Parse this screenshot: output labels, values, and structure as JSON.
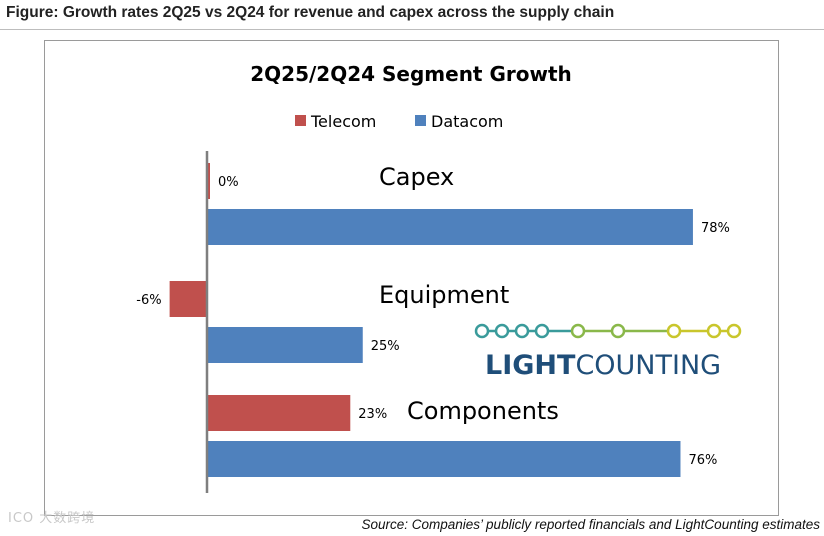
{
  "figure": {
    "caption": "Figure: Growth rates 2Q25 vs 2Q24 for revenue and capex across the supply chain",
    "source": "Source: Companies’ publicly reported financials and LightCounting estimates",
    "watermark": "ICO 大数跨境"
  },
  "logo": {
    "text_light": "LIGHT",
    "text_counting": "COUNTING",
    "colors": [
      "#3a9b9b",
      "#8ab84a",
      "#c9c62c",
      "#1f4e79"
    ]
  },
  "chart_data": {
    "type": "bar",
    "orientation": "horizontal",
    "title": "2Q25/2Q24 Segment Growth",
    "categories": [
      "Capex",
      "Equipment",
      "Components"
    ],
    "series": [
      {
        "name": "Telecom",
        "color": "#c0504d",
        "values": [
          0,
          -6,
          23
        ],
        "labels": [
          "0%",
          "-6%",
          "23%"
        ]
      },
      {
        "name": "Datacom",
        "color": "#4f81bd",
        "values": [
          78,
          25,
          76
        ],
        "labels": [
          "78%",
          "25%",
          "76%"
        ]
      }
    ],
    "unit": "%",
    "xlim": [
      -12,
      82
    ],
    "legend_position": "top-center",
    "grid": false,
    "axis_color": "#7f7f7f"
  }
}
